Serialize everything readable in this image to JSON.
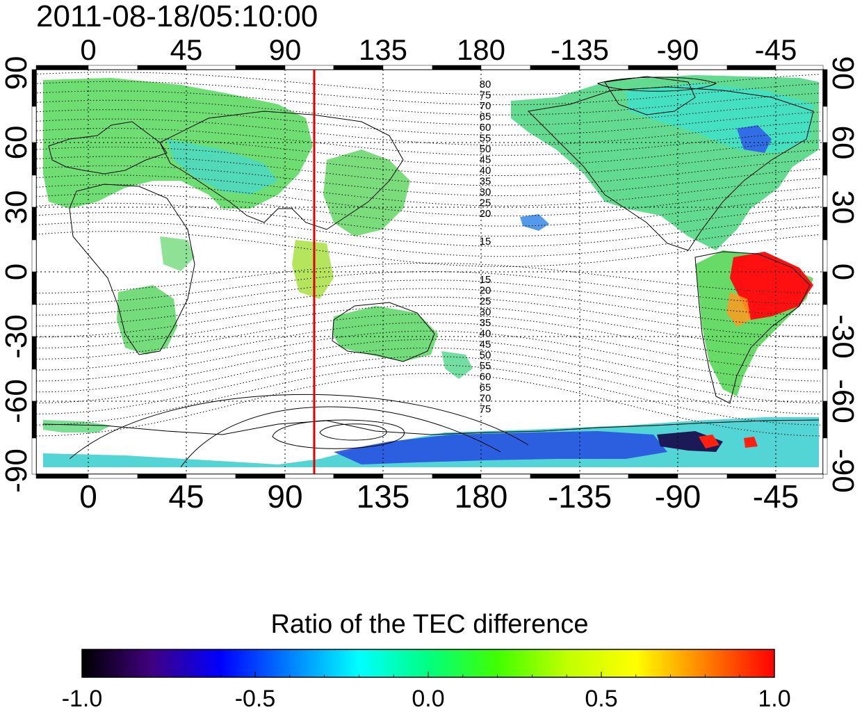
{
  "title": "2011-08-18/05:10:00",
  "colorbar": {
    "title": "Ratio of the TEC difference",
    "tick_labels": [
      "-1.0",
      "-0.5",
      "0.0",
      "0.5",
      "1.0"
    ],
    "stops": [
      "#000000",
      "#40007f",
      "#0000ff",
      "#0080ff",
      "#00ffff",
      "#00ff80",
      "#40ff00",
      "#c0ff00",
      "#ffff00",
      "#ff8000",
      "#ff0000"
    ]
  },
  "axes": {
    "lon_labels": [
      "0",
      "45",
      "90",
      "135",
      "180",
      "-135",
      "-90",
      "-45"
    ],
    "lat_labels": [
      "90",
      "60",
      "30",
      "0",
      "-30",
      "-60",
      "-90"
    ]
  },
  "contour_labels_north": [
    "80",
    "75",
    "70",
    "65",
    "60",
    "55",
    "50",
    "45",
    "40",
    "35",
    "30",
    "25",
    "20",
    "15"
  ],
  "contour_labels_south": [
    "15",
    "20",
    "25",
    "30",
    "35",
    "40",
    "45",
    "50",
    "55",
    "60",
    "65",
    "70",
    "75"
  ],
  "marker": {
    "color": "#e00000",
    "longitude": 103
  }
}
